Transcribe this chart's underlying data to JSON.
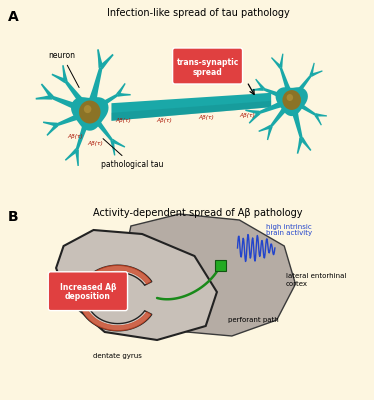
{
  "bg_color": "#fdf6e0",
  "panel_a_title": "Infection-like spread of tau pathology",
  "panel_b_title": "Activity-dependent spread of Aβ pathology",
  "neuron_color": "#1aa8a8",
  "neuron_dark": "#138888",
  "neuron_light": "#22cccc",
  "nucleus_color": "#8B7326",
  "nucleus_dark": "#5c4e1a",
  "tau_label_color": "#aa1100",
  "trans_synaptic_color": "#e04040",
  "brain_back_color": "#b5aca4",
  "brain_front_color": "#c8c0b8",
  "brain_inner_color": "#d5cec8",
  "brain_edge_color": "#2a2a2a",
  "green_path_color": "#1a8a1a",
  "green_marker_color": "#22aa22",
  "red_arc_color": "#cc4422",
  "wave_color": "#2244cc",
  "deposition_color": "#e04040",
  "panel_a_label": "A",
  "panel_b_label": "B",
  "neuron_label": "neuron",
  "tau_text": "pathological tau",
  "trans_syn_line1": "trans-synaptic",
  "trans_syn_line2": "spread",
  "high_activity_text": "high intrinsic\nbrain activity",
  "lateral_text": "lateral entorhinal\ncortex",
  "perforant_text": "perforant path",
  "dentate_text": "dentate gyrus",
  "increased_ab_line1": "Increased Aβ",
  "increased_ab_line2": "deposition"
}
